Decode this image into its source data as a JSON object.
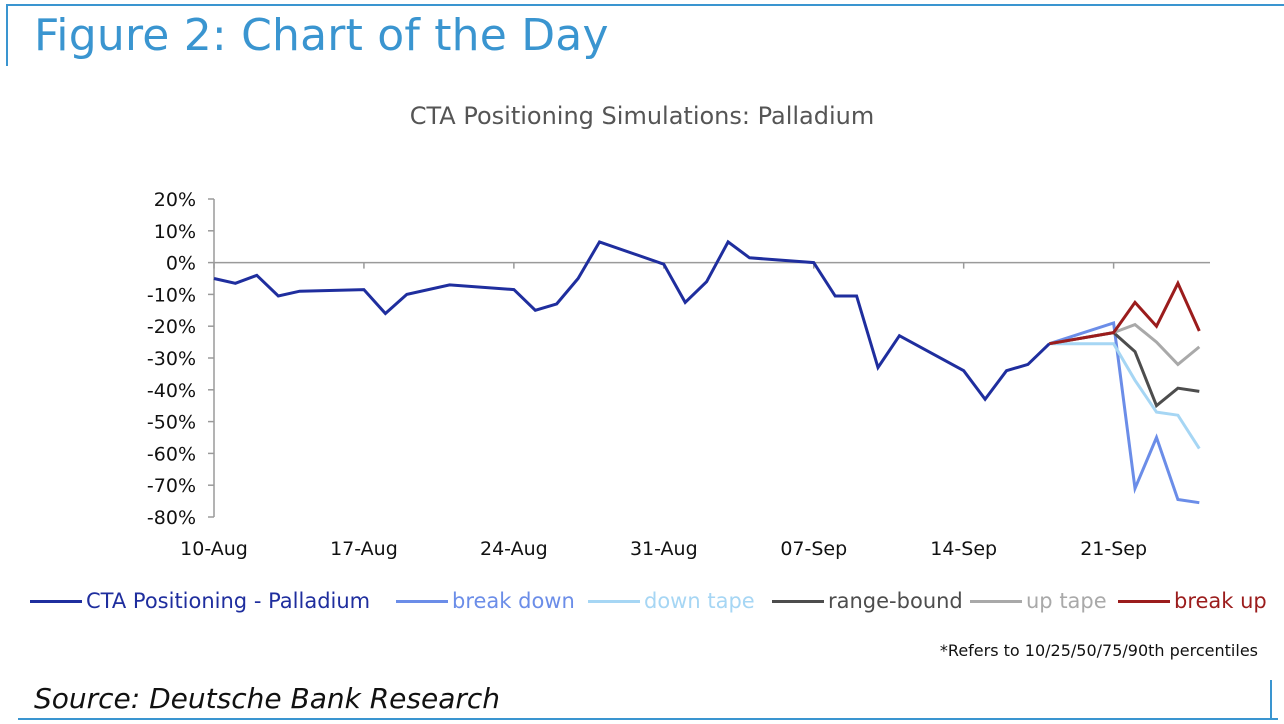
{
  "figure_title": "Figure 2: Chart of the Day",
  "source_text": "Source: Deutsche Bank Research",
  "footnote": "*Refers to 10/25/50/75/90th percentiles",
  "chart_data": {
    "type": "line",
    "title": "CTA Positioning Simulations: Palladium",
    "xlabel": "",
    "ylabel": "",
    "ylim": [
      -80,
      20
    ],
    "y_ticks": [
      "20%",
      "10%",
      "0%",
      "-10%",
      "-20%",
      "-30%",
      "-40%",
      "-50%",
      "-60%",
      "-70%",
      "-80%"
    ],
    "x_ticks": [
      "10-Aug",
      "17-Aug",
      "24-Aug",
      "31-Aug",
      "07-Sep",
      "14-Sep",
      "21-Sep"
    ],
    "x_tick_days": [
      0,
      7,
      14,
      21,
      28,
      35,
      42
    ],
    "x_range_days": [
      0,
      46.5
    ],
    "grid": false,
    "legend_position": "bottom",
    "series": [
      {
        "name": "CTA Positioning - Palladium",
        "color": "#1f2e9e",
        "x": [
          0,
          1,
          2,
          3,
          4,
          7,
          8,
          9,
          11,
          14,
          15,
          16,
          17,
          18,
          21,
          22,
          23,
          24,
          25,
          28,
          29,
          30,
          31,
          32,
          35,
          36,
          37,
          38,
          39
        ],
        "y": [
          -5,
          -6.5,
          -4,
          -10.5,
          -9,
          -8.5,
          -16,
          -10,
          -7,
          -8.5,
          -15,
          -13,
          -5,
          6.5,
          -0.5,
          -12.5,
          -6,
          6.5,
          1.5,
          0,
          -10.5,
          -10.5,
          -33,
          -23,
          -34,
          -43,
          -34,
          -32,
          -25.5
        ]
      },
      {
        "name": "break down",
        "color": "#6b8de8",
        "x": [
          39,
          42,
          43,
          44,
          45,
          46
        ],
        "y": [
          -25.5,
          -19,
          -71,
          -55,
          -74.5,
          -75.5
        ]
      },
      {
        "name": "down tape",
        "color": "#a6d6f4",
        "x": [
          39,
          42,
          43,
          44,
          45,
          46
        ],
        "y": [
          -25.5,
          -25.5,
          -37,
          -47,
          -48,
          -58.5
        ]
      },
      {
        "name": "range-bound",
        "color": "#4d4d4d",
        "x": [
          39,
          42,
          43,
          44,
          45,
          46
        ],
        "y": [
          -25.5,
          -22,
          -28,
          -45,
          -39.5,
          -40.5
        ]
      },
      {
        "name": "up tape",
        "color": "#a9a9a9",
        "x": [
          39,
          42,
          43,
          44,
          45,
          46
        ],
        "y": [
          -25.5,
          -22,
          -19.5,
          -25,
          -32,
          -26.5
        ]
      },
      {
        "name": "break up",
        "color": "#9b1c1c",
        "x": [
          39,
          42,
          43,
          44,
          45,
          46
        ],
        "y": [
          -25.5,
          -22,
          -12.5,
          -20,
          -6.5,
          -21.5
        ]
      }
    ]
  }
}
